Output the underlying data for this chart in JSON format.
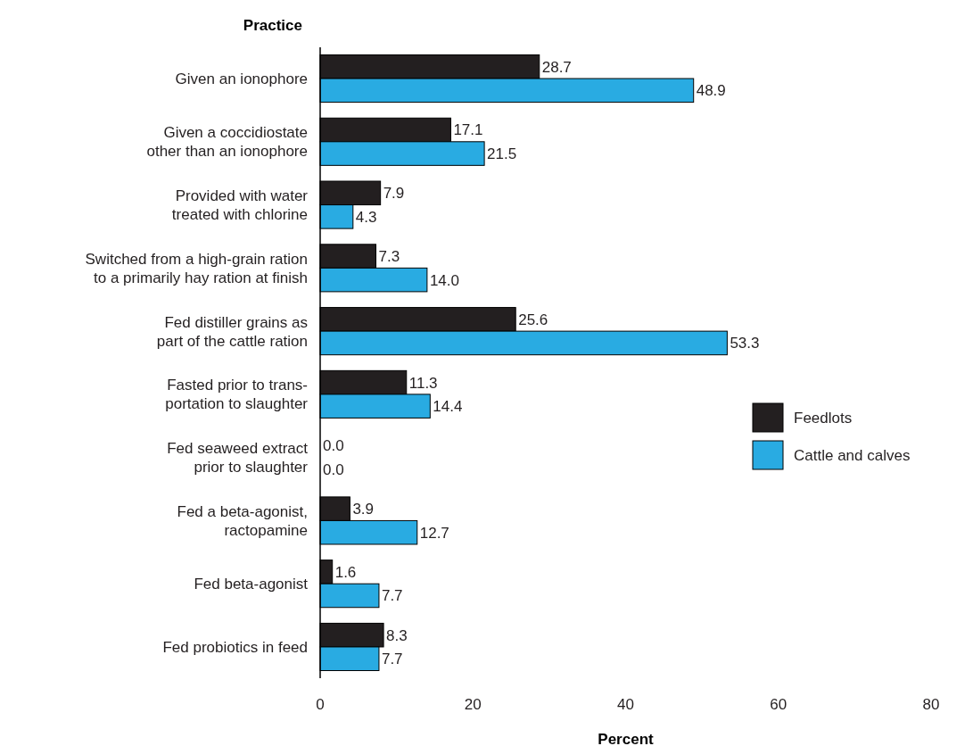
{
  "chart_data": {
    "type": "bar",
    "orientation": "horizontal",
    "ylabel": "Practice",
    "xlabel": "Percent",
    "categories": [
      "Given an ionophore",
      "Given a coccidiostate\nother than an ionophore",
      "Provided with water\ntreated with chlorine",
      "Switched from a high-grain ration\nto a primarily hay ration at finish",
      "Fed distiller grains as\npart of the cattle ration",
      "Fasted prior to trans-\nportation to slaughter",
      "Fed seaweed extract\nprior to slaughter",
      "Fed a beta-agonist,\nractopamine",
      "Fed beta-agonist",
      "Fed probiotics in feed"
    ],
    "series": [
      {
        "name": "Feedlots",
        "color": "#231f20",
        "values": [
          28.7,
          17.1,
          7.9,
          7.3,
          25.6,
          11.3,
          0,
          3.9,
          1.6,
          8.3
        ],
        "value_labels": [
          "28.7",
          "17.1",
          "7.9",
          "7.3",
          "25.6",
          "11.3",
          "0.0",
          "3.9",
          "1.6",
          "8.3"
        ]
      },
      {
        "name": "Cattle and calves",
        "color": "#29abe2",
        "values": [
          48.9,
          21.5,
          4.3,
          14,
          53.3,
          14.4,
          0,
          12.7,
          7.7,
          7.7
        ],
        "value_labels": [
          "48.9",
          "21.5",
          "4.3",
          "14.0",
          "53.3",
          "14.4",
          "0.0",
          "12.7",
          "7.7",
          "7.7"
        ]
      }
    ],
    "xlim": [
      0,
      80
    ],
    "xticks": [
      0,
      20,
      40,
      60,
      80
    ],
    "legend": "right",
    "grid": false
  }
}
